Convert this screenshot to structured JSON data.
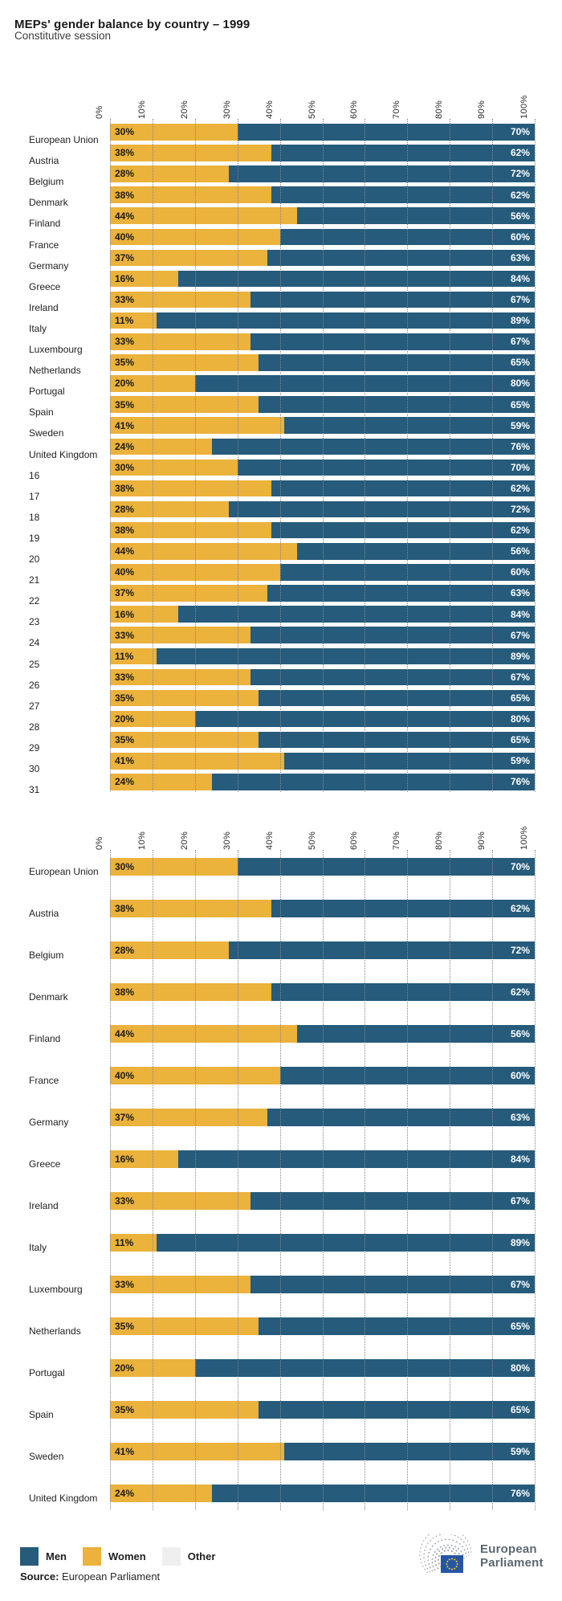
{
  "title": "MEPs' gender balance by country – 1999",
  "subtitle": "Constitutive session",
  "colors": {
    "men": "#265b7b",
    "women": "#ebb23c",
    "other": "#efefef",
    "grid": "#868686",
    "text": "#1a1a1a",
    "logo_gray": "#5c6770",
    "flag_blue": "#2656a3",
    "flag_stars": "#f7d117"
  },
  "chart_data": [
    {
      "type": "bar",
      "orientation": "horizontal",
      "stacked": true,
      "title": "MEPs' gender balance by country – 1999 (all rows)",
      "xlim": [
        0,
        100
      ],
      "grid": "dotted-vertical",
      "x_ticks": [
        "0%",
        "10%",
        "20%",
        "30%",
        "40%",
        "50%",
        "60%",
        "70%",
        "80%",
        "90%",
        "100%"
      ],
      "categories": [
        "European Union",
        "Austria",
        "Belgium",
        "Denmark",
        "Finland",
        "France",
        "Germany",
        "Greece",
        "Ireland",
        "Italy",
        "Luxembourg",
        "Netherlands",
        "Portugal",
        "Spain",
        "Sweden",
        "United Kingdom",
        "16",
        "17",
        "18",
        "19",
        "20",
        "21",
        "22",
        "23",
        "24",
        "25",
        "26",
        "27",
        "28",
        "29",
        "30",
        "31"
      ],
      "series": [
        {
          "name": "Women",
          "values": [
            30,
            38,
            28,
            38,
            44,
            40,
            37,
            16,
            33,
            11,
            33,
            35,
            20,
            35,
            41,
            24,
            30,
            38,
            28,
            38,
            44,
            40,
            37,
            16,
            33,
            11,
            33,
            35,
            20,
            35,
            41,
            24
          ]
        },
        {
          "name": "Men",
          "values": [
            70,
            62,
            72,
            62,
            56,
            60,
            63,
            84,
            67,
            89,
            67,
            65,
            80,
            65,
            59,
            76,
            70,
            62,
            72,
            62,
            56,
            60,
            63,
            84,
            67,
            89,
            67,
            65,
            80,
            65,
            59,
            76
          ]
        }
      ]
    },
    {
      "type": "bar",
      "orientation": "horizontal",
      "stacked": true,
      "title": "MEPs' gender balance by country – 1999 (countries)",
      "xlim": [
        0,
        100
      ],
      "grid": "dotted-vertical",
      "x_ticks": [
        "0%",
        "10%",
        "20%",
        "30%",
        "40%",
        "50%",
        "60%",
        "70%",
        "80%",
        "90%",
        "100%"
      ],
      "categories": [
        "European Union",
        "Austria",
        "Belgium",
        "Denmark",
        "Finland",
        "France",
        "Germany",
        "Greece",
        "Ireland",
        "Italy",
        "Luxembourg",
        "Netherlands",
        "Portugal",
        "Spain",
        "Sweden",
        "United Kingdom"
      ],
      "series": [
        {
          "name": "Women",
          "values": [
            30,
            38,
            28,
            38,
            44,
            40,
            37,
            16,
            33,
            11,
            33,
            35,
            20,
            35,
            41,
            24
          ]
        },
        {
          "name": "Men",
          "values": [
            70,
            62,
            72,
            62,
            56,
            60,
            63,
            84,
            67,
            89,
            67,
            65,
            80,
            65,
            59,
            76
          ]
        }
      ]
    }
  ],
  "legend": {
    "position": "bottom-left",
    "items": [
      {
        "label": "Men",
        "color": "#265b7b"
      },
      {
        "label": "Women",
        "color": "#ebb23c"
      },
      {
        "label": "Other",
        "color": "#efefef"
      }
    ]
  },
  "source": {
    "label": "Source:",
    "text": "European Parliament"
  },
  "logo": {
    "name": "european-parliament-logo",
    "line1": "European",
    "line2": "Parliament"
  }
}
